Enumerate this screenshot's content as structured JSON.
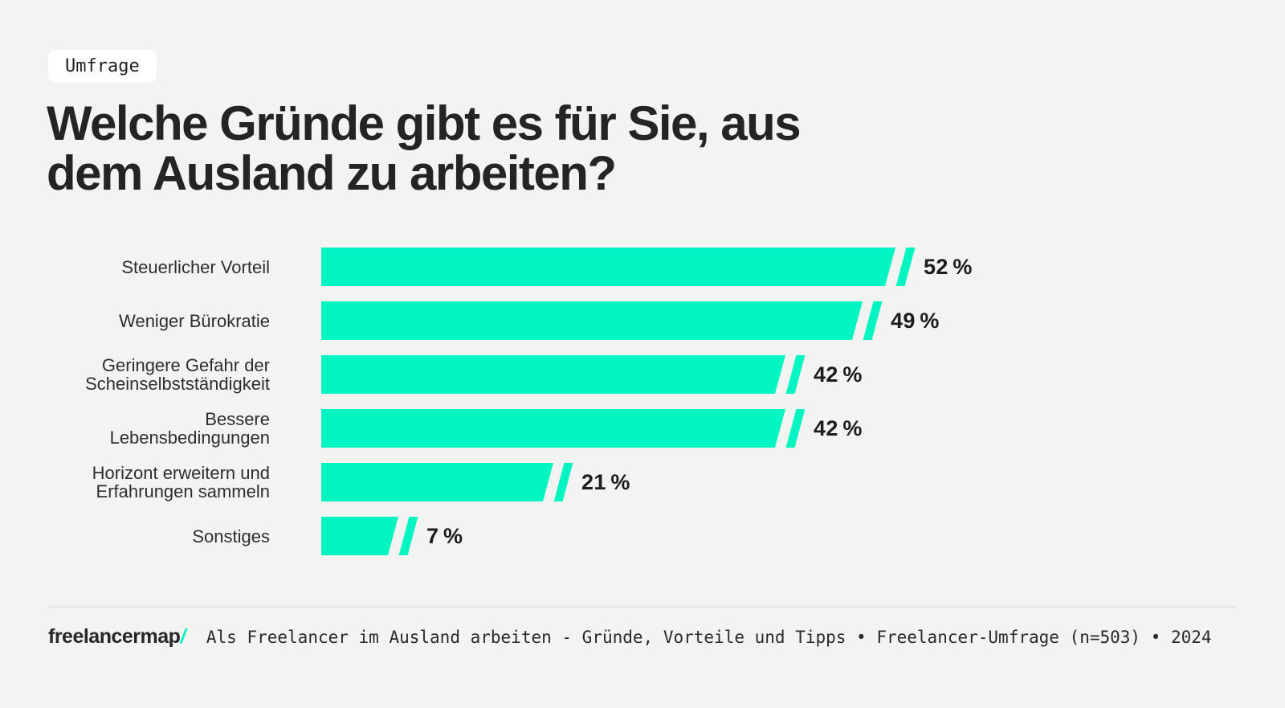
{
  "page": {
    "background_color": "#f3f3f1",
    "accent_color": "#00f5c2",
    "text_color": "#242424"
  },
  "badge": {
    "label": "Umfrage"
  },
  "title": {
    "line1": "Welche Gründe gibt es für Sie, aus",
    "line2": "dem Ausland zu arbeiten?",
    "full": "Welche Gründe gibt es für Sie, aus dem Ausland zu arbeiten?"
  },
  "chart_data": {
    "type": "bar",
    "orientation": "horizontal",
    "title": "Welche Gründe gibt es für Sie, aus dem Ausland zu arbeiten?",
    "categories": [
      "Steuerlicher Vorteil",
      "Weniger Bürokratie",
      "Geringere Gefahr der Scheinselbstständigkeit",
      "Bessere Lebensbedingungen",
      "Horizont erweitern und Erfahrungen sammeln",
      "Sonstiges"
    ],
    "values": [
      52,
      49,
      42,
      42,
      21,
      7
    ],
    "value_labels": [
      "52 %",
      "49 %",
      "42 %",
      "42 %",
      "21 %",
      "7 %"
    ],
    "unit": "%",
    "xlim": [
      0,
      52
    ],
    "grid": false,
    "legend": false,
    "bar_color": "#00f5c2",
    "rows": [
      {
        "label_lines": [
          "Steuerlicher Vorteil"
        ],
        "value": 52,
        "value_label": "52 %"
      },
      {
        "label_lines": [
          "Weniger Bürokratie"
        ],
        "value": 49,
        "value_label": "49 %"
      },
      {
        "label_lines": [
          "Geringere Gefahr der",
          "Scheinselbstständigkeit"
        ],
        "value": 42,
        "value_label": "42 %"
      },
      {
        "label_lines": [
          "Bessere",
          "Lebensbedingungen"
        ],
        "value": 42,
        "value_label": "42 %"
      },
      {
        "label_lines": [
          "Horizont erweitern und",
          "Erfahrungen sammeln"
        ],
        "value": 21,
        "value_label": "21 %"
      },
      {
        "label_lines": [
          "Sonstiges"
        ],
        "value": 7,
        "value_label": "7 %"
      }
    ]
  },
  "footer": {
    "logo_text": "freelancermap",
    "logo_slash": "/",
    "source": "Als Freelancer im Ausland arbeiten - Gründe, Vorteile und Tipps • Freelancer-Umfrage (n=503) • 2024"
  }
}
